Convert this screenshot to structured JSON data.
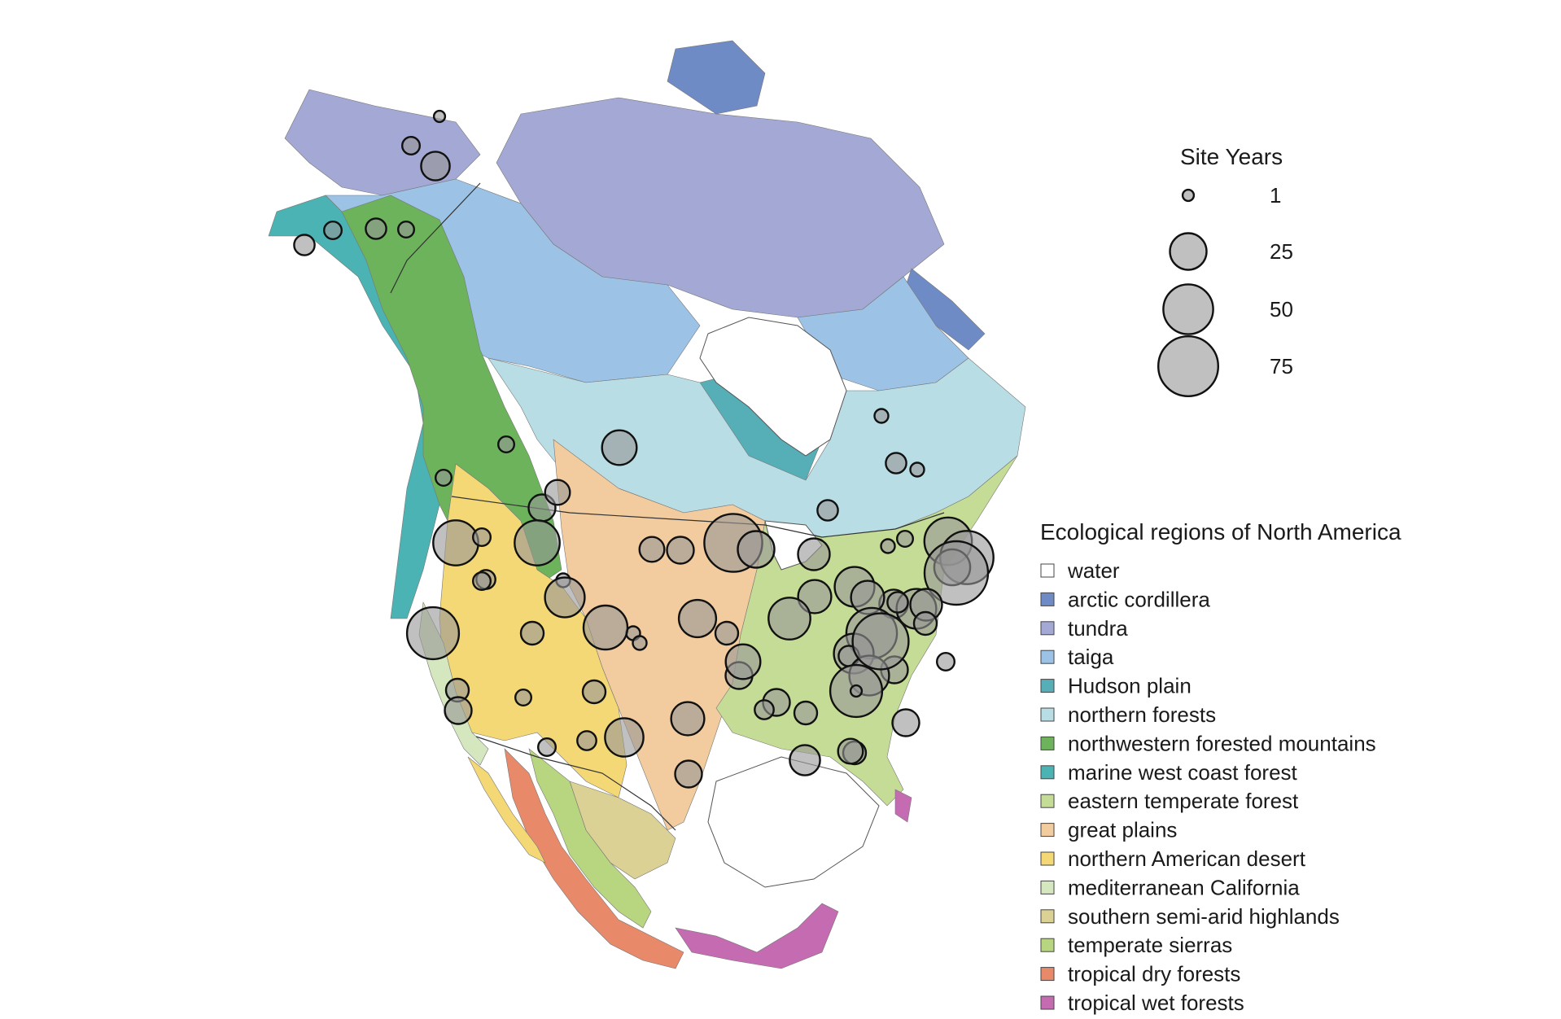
{
  "site_years_legend": {
    "title": "Site Years",
    "entries": [
      {
        "label": "1",
        "value": 1
      },
      {
        "label": "25",
        "value": 25
      },
      {
        "label": "50",
        "value": 50
      },
      {
        "label": "75",
        "value": 75
      }
    ]
  },
  "ecoregion_legend": {
    "title": "Ecological regions of North America",
    "entries": [
      {
        "label": "water",
        "color": "#ffffff"
      },
      {
        "label": "arctic cordillera",
        "color": "#6f8bc6"
      },
      {
        "label": "tundra",
        "color": "#a3a8d4"
      },
      {
        "label": "taiga",
        "color": "#9cc3e6"
      },
      {
        "label": "Hudson plain",
        "color": "#56aeb6"
      },
      {
        "label": "northern forests",
        "color": "#b9dde4"
      },
      {
        "label": "northwestern forested mountains",
        "color": "#6cb35c"
      },
      {
        "label": "marine west coast forest",
        "color": "#4bb3b3"
      },
      {
        "label": "eastern temperate forest",
        "color": "#c5dc96"
      },
      {
        "label": "great plains",
        "color": "#f2cc9e"
      },
      {
        "label": "northern American desert",
        "color": "#f3d875"
      },
      {
        "label": "mediterranean California",
        "color": "#d4e7be"
      },
      {
        "label": "southern semi-arid highlands",
        "color": "#dcd194"
      },
      {
        "label": "temperate sierras",
        "color": "#b8d680"
      },
      {
        "label": "tropical dry forests",
        "color": "#e8896a"
      },
      {
        "label": "tropical wet forests",
        "color": "#c46bb1"
      }
    ]
  },
  "sites": [
    {
      "v": 1
    },
    {
      "v": 4
    },
    {
      "v": 14
    },
    {
      "v": 6
    },
    {
      "v": 4
    },
    {
      "v": 6
    },
    {
      "v": 3
    },
    {
      "v": 3
    },
    {
      "v": 22
    },
    {
      "v": 3
    },
    {
      "v": 12
    },
    {
      "v": 40
    },
    {
      "v": 4
    },
    {
      "v": 40
    },
    {
      "v": 10
    },
    {
      "v": 5
    },
    {
      "v": 70
    },
    {
      "v": 25
    },
    {
      "v": 18
    },
    {
      "v": 10
    },
    {
      "v": 12
    },
    {
      "v": 6
    },
    {
      "v": 2
    },
    {
      "v": 6
    },
    {
      "v": 2
    },
    {
      "v": 2
    },
    {
      "v": 3
    },
    {
      "v": 45
    },
    {
      "v": 58
    },
    {
      "v": 24
    },
    {
      "v": 2
    },
    {
      "v": 20
    },
    {
      "v": 30
    },
    {
      "v": 4
    },
    {
      "v": 55
    },
    {
      "v": 85
    },
    {
      "v": 14
    },
    {
      "v": 20
    },
    {
      "v": 30
    },
    {
      "v": 34
    },
    {
      "v": 52
    },
    {
      "v": 8
    },
    {
      "v": 30
    },
    {
      "v": 8
    },
    {
      "v": 2
    },
    {
      "v": 2
    },
    {
      "v": 38
    },
    {
      "v": 26
    },
    {
      "v": 8
    },
    {
      "v": 6
    },
    {
      "v": 18
    },
    {
      "v": 8
    },
    {
      "v": 12
    },
    {
      "v": 30
    },
    {
      "v": 6
    },
    {
      "v": 30
    },
    {
      "v": 12
    },
    {
      "v": 65
    },
    {
      "v": 22
    },
    {
      "v": 4
    },
    {
      "v": 8
    },
    {
      "v": 28
    },
    {
      "v": 12
    },
    {
      "v": 3
    },
    {
      "v": 8
    },
    {
      "v": 12
    },
    {
      "v": 55
    },
    {
      "v": 20
    },
    {
      "v": 12
    },
    {
      "v": 1
    },
    {
      "v": 5
    },
    {
      "v": 5
    },
    {
      "v": 8
    },
    {
      "v": 4
    },
    {
      "v": 12
    },
    {
      "v": 16
    },
    {
      "v": 10
    }
  ]
}
